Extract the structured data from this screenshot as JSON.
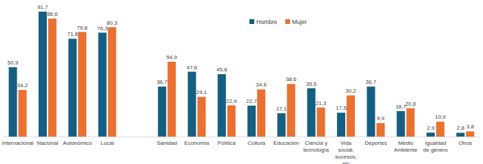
{
  "chart_data": {
    "type": "bar",
    "categories": [
      "Internacional",
      "Nacional",
      "Autonómico",
      "Local",
      null,
      "Sanidad",
      "Economía",
      "Política",
      "Cultura",
      "Educación",
      "Ciencia y tecnología",
      "Vida social, sucesos, etc",
      "Deportes",
      "Medio Ambiente",
      "Igualdad de género",
      "Otros"
    ],
    "series": [
      {
        "name": "Hombre",
        "color": "#156082",
        "values": [
          50.9,
          91.7,
          71.8,
          76.3,
          null,
          36.7,
          47.6,
          45.8,
          22.7,
          17.1,
          35.5,
          17.5,
          36.7,
          18.7,
          2.9,
          2.8
        ],
        "value_labels": [
          "50,9",
          "91,7",
          "71,8",
          "76,3",
          null,
          "36,7",
          "47,6",
          "45,8",
          "22,7",
          "17,1",
          "35,5",
          "17,5",
          "36,7",
          "18,7",
          "2,9",
          "2,8"
        ]
      },
      {
        "name": "Mujer",
        "color": "#E97132",
        "values": [
          34.2,
          86.6,
          76.8,
          80.3,
          null,
          54.9,
          29.1,
          22.9,
          34.6,
          38.6,
          21.3,
          30.2,
          9.9,
          20.8,
          10.9,
          3.8
        ],
        "value_labels": [
          "34,2",
          "86,6",
          "76,8",
          "80,3",
          null,
          "54,9",
          "29,1",
          "22,9",
          "34,6",
          "38,6",
          "21,3",
          "30,2",
          "9,9",
          "20,8",
          "10,9",
          "3,8"
        ]
      }
    ],
    "ylim": [
      0,
      100
    ],
    "data_labels": true,
    "tick_labels": "x",
    "legend": "top",
    "grid": false
  }
}
